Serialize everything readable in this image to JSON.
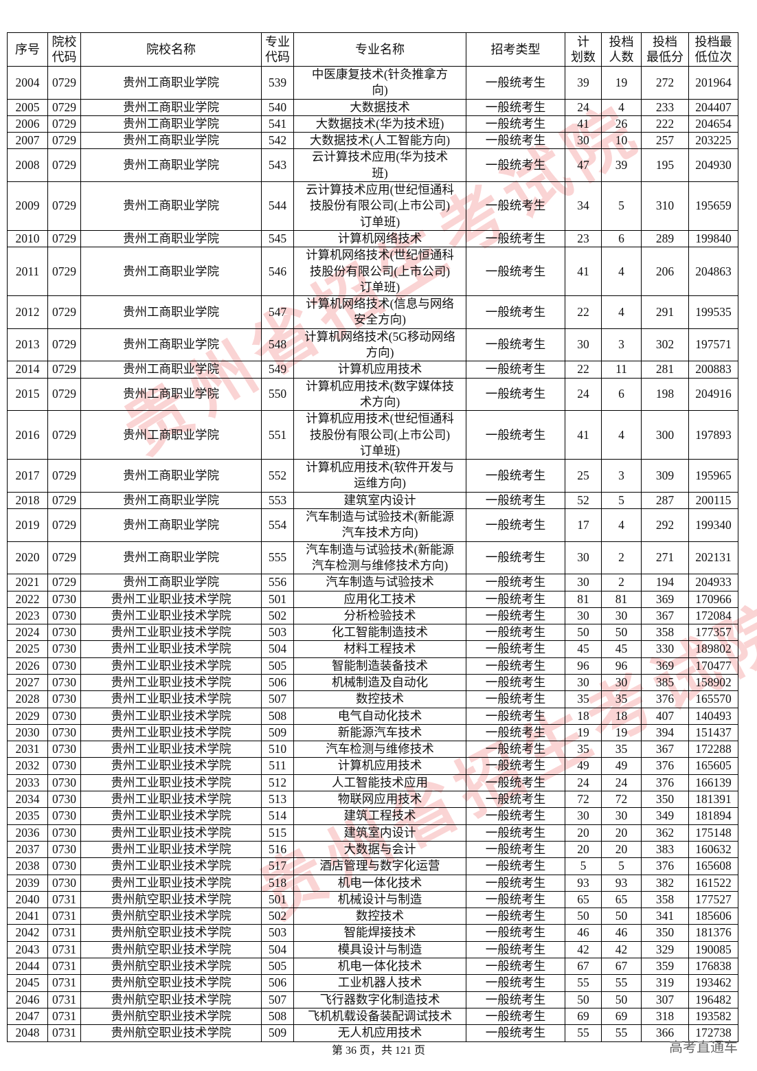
{
  "headers": [
    "序号",
    "院校\n代码",
    "院校名称",
    "专业\n代码",
    "专业名称",
    "招考类型",
    "计\n划数",
    "投档\n人数",
    "投档\n最低分",
    "投档最\n低位次"
  ],
  "rows": [
    [
      "2004",
      "0729",
      "贵州工商职业学院",
      "539",
      "中医康复技术(针灸推拿方\n向)",
      "一般统考生",
      "39",
      "19",
      "272",
      "201964"
    ],
    [
      "2005",
      "0729",
      "贵州工商职业学院",
      "540",
      "大数据技术",
      "一般统考生",
      "24",
      "4",
      "233",
      "204407"
    ],
    [
      "2006",
      "0729",
      "贵州工商职业学院",
      "541",
      "大数据技术(华为技术班)",
      "一般统考生",
      "41",
      "26",
      "222",
      "204654"
    ],
    [
      "2007",
      "0729",
      "贵州工商职业学院",
      "542",
      "大数据技术(人工智能方向)",
      "一般统考生",
      "30",
      "10",
      "257",
      "203225"
    ],
    [
      "2008",
      "0729",
      "贵州工商职业学院",
      "543",
      "云计算技术应用(华为技术\n班)",
      "一般统考生",
      "47",
      "39",
      "195",
      "204930"
    ],
    [
      "2009",
      "0729",
      "贵州工商职业学院",
      "544",
      "云计算技术应用(世纪恒通科\n技股份有限公司(上市公司)\n订单班)",
      "一般统考生",
      "34",
      "5",
      "310",
      "195659"
    ],
    [
      "2010",
      "0729",
      "贵州工商职业学院",
      "545",
      "计算机网络技术",
      "一般统考生",
      "23",
      "6",
      "289",
      "199840"
    ],
    [
      "2011",
      "0729",
      "贵州工商职业学院",
      "546",
      "计算机网络技术(世纪恒通科\n技股份有限公司(上市公司)\n订单班)",
      "一般统考生",
      "41",
      "4",
      "206",
      "204863"
    ],
    [
      "2012",
      "0729",
      "贵州工商职业学院",
      "547",
      "计算机网络技术(信息与网络\n安全方向)",
      "一般统考生",
      "22",
      "4",
      "291",
      "199535"
    ],
    [
      "2013",
      "0729",
      "贵州工商职业学院",
      "548",
      "计算机网络技术(5G移动网络\n方向)",
      "一般统考生",
      "30",
      "3",
      "302",
      "197571"
    ],
    [
      "2014",
      "0729",
      "贵州工商职业学院",
      "549",
      "计算机应用技术",
      "一般统考生",
      "22",
      "11",
      "281",
      "200883"
    ],
    [
      "2015",
      "0729",
      "贵州工商职业学院",
      "550",
      "计算机应用技术(数字媒体技\n术方向)",
      "一般统考生",
      "24",
      "6",
      "198",
      "204916"
    ],
    [
      "2016",
      "0729",
      "贵州工商职业学院",
      "551",
      "计算机应用技术(世纪恒通科\n技股份有限公司(上市公司)\n订单班)",
      "一般统考生",
      "41",
      "4",
      "300",
      "197893"
    ],
    [
      "2017",
      "0729",
      "贵州工商职业学院",
      "552",
      "计算机应用技术(软件开发与\n运维方向)",
      "一般统考生",
      "25",
      "3",
      "309",
      "195965"
    ],
    [
      "2018",
      "0729",
      "贵州工商职业学院",
      "553",
      "建筑室内设计",
      "一般统考生",
      "52",
      "5",
      "287",
      "200115"
    ],
    [
      "2019",
      "0729",
      "贵州工商职业学院",
      "554",
      "汽车制造与试验技术(新能源\n汽车技术方向)",
      "一般统考生",
      "17",
      "4",
      "292",
      "199340"
    ],
    [
      "2020",
      "0729",
      "贵州工商职业学院",
      "555",
      "汽车制造与试验技术(新能源\n汽车检测与维修技术方向)",
      "一般统考生",
      "30",
      "2",
      "271",
      "202131"
    ],
    [
      "2021",
      "0729",
      "贵州工商职业学院",
      "556",
      "汽车制造与试验技术",
      "一般统考生",
      "30",
      "2",
      "194",
      "204933"
    ],
    [
      "2022",
      "0730",
      "贵州工业职业技术学院",
      "501",
      "应用化工技术",
      "一般统考生",
      "81",
      "81",
      "369",
      "170966"
    ],
    [
      "2023",
      "0730",
      "贵州工业职业技术学院",
      "502",
      "分析检验技术",
      "一般统考生",
      "30",
      "30",
      "367",
      "172084"
    ],
    [
      "2024",
      "0730",
      "贵州工业职业技术学院",
      "503",
      "化工智能制造技术",
      "一般统考生",
      "50",
      "50",
      "358",
      "177357"
    ],
    [
      "2025",
      "0730",
      "贵州工业职业技术学院",
      "504",
      "材料工程技术",
      "一般统考生",
      "45",
      "45",
      "330",
      "189802"
    ],
    [
      "2026",
      "0730",
      "贵州工业职业技术学院",
      "505",
      "智能制造装备技术",
      "一般统考生",
      "96",
      "96",
      "369",
      "170477"
    ],
    [
      "2027",
      "0730",
      "贵州工业职业技术学院",
      "506",
      "机械制造及自动化",
      "一般统考生",
      "30",
      "30",
      "385",
      "158902"
    ],
    [
      "2028",
      "0730",
      "贵州工业职业技术学院",
      "507",
      "数控技术",
      "一般统考生",
      "35",
      "35",
      "376",
      "165570"
    ],
    [
      "2029",
      "0730",
      "贵州工业职业技术学院",
      "508",
      "电气自动化技术",
      "一般统考生",
      "18",
      "18",
      "407",
      "140493"
    ],
    [
      "2030",
      "0730",
      "贵州工业职业技术学院",
      "509",
      "新能源汽车技术",
      "一般统考生",
      "19",
      "19",
      "394",
      "151437"
    ],
    [
      "2031",
      "0730",
      "贵州工业职业技术学院",
      "510",
      "汽车检测与维修技术",
      "一般统考生",
      "35",
      "35",
      "367",
      "172288"
    ],
    [
      "2032",
      "0730",
      "贵州工业职业技术学院",
      "511",
      "计算机应用技术",
      "一般统考生",
      "49",
      "49",
      "376",
      "165605"
    ],
    [
      "2033",
      "0730",
      "贵州工业职业技术学院",
      "512",
      "人工智能技术应用",
      "一般统考生",
      "24",
      "24",
      "376",
      "166139"
    ],
    [
      "2034",
      "0730",
      "贵州工业职业技术学院",
      "513",
      "物联网应用技术",
      "一般统考生",
      "72",
      "72",
      "350",
      "181391"
    ],
    [
      "2035",
      "0730",
      "贵州工业职业技术学院",
      "514",
      "建筑工程技术",
      "一般统考生",
      "30",
      "30",
      "349",
      "181894"
    ],
    [
      "2036",
      "0730",
      "贵州工业职业技术学院",
      "515",
      "建筑室内设计",
      "一般统考生",
      "20",
      "20",
      "362",
      "175148"
    ],
    [
      "2037",
      "0730",
      "贵州工业职业技术学院",
      "516",
      "大数据与会计",
      "一般统考生",
      "20",
      "20",
      "383",
      "160632"
    ],
    [
      "2038",
      "0730",
      "贵州工业职业技术学院",
      "517",
      "酒店管理与数字化运营",
      "一般统考生",
      "5",
      "5",
      "376",
      "165608"
    ],
    [
      "2039",
      "0730",
      "贵州工业职业技术学院",
      "518",
      "机电一体化技术",
      "一般统考生",
      "93",
      "93",
      "382",
      "161522"
    ],
    [
      "2040",
      "0731",
      "贵州航空职业技术学院",
      "501",
      "机械设计与制造",
      "一般统考生",
      "65",
      "65",
      "358",
      "177527"
    ],
    [
      "2041",
      "0731",
      "贵州航空职业技术学院",
      "502",
      "数控技术",
      "一般统考生",
      "50",
      "50",
      "341",
      "185606"
    ],
    [
      "2042",
      "0731",
      "贵州航空职业技术学院",
      "503",
      "智能焊接技术",
      "一般统考生",
      "46",
      "46",
      "350",
      "181376"
    ],
    [
      "2043",
      "0731",
      "贵州航空职业技术学院",
      "504",
      "模具设计与制造",
      "一般统考生",
      "42",
      "42",
      "329",
      "190085"
    ],
    [
      "2044",
      "0731",
      "贵州航空职业技术学院",
      "505",
      "机电一体化技术",
      "一般统考生",
      "67",
      "67",
      "359",
      "176838"
    ],
    [
      "2045",
      "0731",
      "贵州航空职业技术学院",
      "506",
      "工业机器人技术",
      "一般统考生",
      "55",
      "55",
      "319",
      "193462"
    ],
    [
      "2046",
      "0731",
      "贵州航空职业技术学院",
      "507",
      "飞行器数字化制造技术",
      "一般统考生",
      "50",
      "50",
      "307",
      "196482"
    ],
    [
      "2047",
      "0731",
      "贵州航空职业技术学院",
      "508",
      "飞机机载设备装配调试技术",
      "一般统考生",
      "69",
      "69",
      "318",
      "193582"
    ],
    [
      "2048",
      "0731",
      "贵州航空职业技术学院",
      "509",
      "无人机应用技术",
      "一般统考生",
      "55",
      "55",
      "366",
      "172738"
    ]
  ],
  "watermark": "贵州省招生考试院",
  "footer": {
    "page": "第 36 页，共 121 页",
    "brand": "高考直通车"
  },
  "colors": {
    "watermark": "#e63c3c"
  }
}
